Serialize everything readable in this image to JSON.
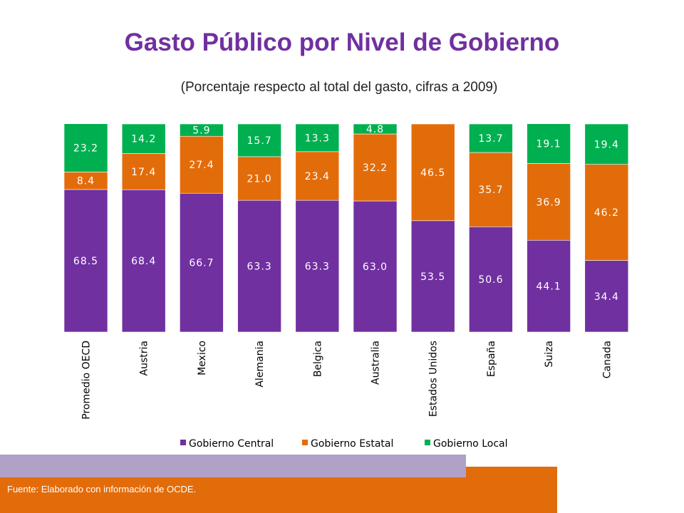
{
  "chart_data": {
    "type": "bar",
    "stacked": true,
    "title": "Gasto Público por Nivel de Gobierno",
    "subtitle": "(Porcentaje respecto al total del gasto, cifras a 2009)",
    "categories": [
      "Promedio OECD",
      "Austria",
      "Mexico",
      "Alemania",
      "Belgica",
      "Australia",
      "Estados Unidos",
      "España",
      "Suiza",
      "Canada"
    ],
    "series": [
      {
        "name": "Gobierno Central",
        "color": "#7030A0",
        "values": [
          68.5,
          68.4,
          66.7,
          63.3,
          63.3,
          63.0,
          53.5,
          50.6,
          44.1,
          34.4
        ]
      },
      {
        "name": "Gobierno Estatal",
        "color": "#E36C0A",
        "values": [
          8.4,
          17.4,
          27.4,
          21.0,
          23.4,
          32.2,
          46.5,
          35.7,
          36.9,
          46.2
        ]
      },
      {
        "name": "Gobierno Local",
        "color": "#00B050",
        "values": [
          23.2,
          14.2,
          5.9,
          15.7,
          13.3,
          4.8,
          null,
          13.7,
          19.1,
          19.4
        ]
      }
    ],
    "ylim": [
      0,
      100
    ],
    "legend": "bottom"
  },
  "footer": {
    "source": "Fuente: Elaborado con información de OCDE."
  }
}
